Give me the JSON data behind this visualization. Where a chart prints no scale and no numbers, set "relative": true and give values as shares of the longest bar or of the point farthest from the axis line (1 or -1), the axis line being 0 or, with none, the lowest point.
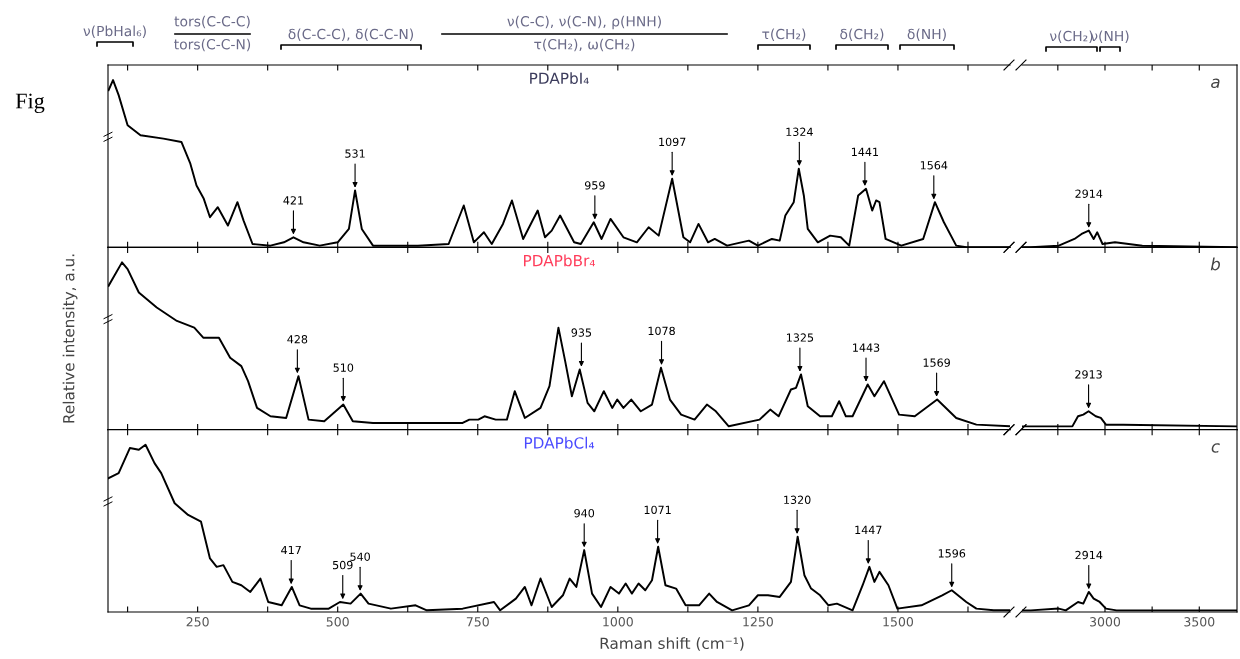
{
  "chart_data": [
    {
      "type": "line",
      "title": "PDAPbI₄",
      "relative": true,
      "tick_labels": false,
      "xlim": [
        90,
        1700
      ],
      "xticks": [
        {
          "value": 125,
          "label": null
        },
        {
          "value": 250,
          "label": null
        },
        {
          "value": 375,
          "label": null
        },
        {
          "value": 500,
          "label": null
        },
        {
          "value": 625,
          "label": null
        },
        {
          "value": 750,
          "label": null
        },
        {
          "value": 875,
          "label": null
        },
        {
          "value": 1000,
          "label": null
        },
        {
          "value": 1125,
          "label": null
        },
        {
          "value": 1250,
          "label": null
        },
        {
          "value": 1375,
          "label": null
        },
        {
          "value": 1500,
          "label": null
        },
        {
          "value": 1625,
          "label": null
        }
      ],
      "series": [
        {
          "color": "#000000",
          "x": [
            91,
            99,
            109,
            125,
            148,
            189,
            221,
            237,
            248,
            261,
            272,
            286,
            304,
            321,
            332,
            348,
            380,
            404,
            421,
            439,
            468,
            500,
            520,
            531,
            543,
            563,
            643,
            698,
            725,
            743,
            761,
            775,
            795,
            811,
            831,
            857,
            870,
            882,
            897,
            922,
            934,
            957,
            971,
            987,
            1010,
            1034,
            1055,
            1073,
            1097,
            1117,
            1129,
            1144,
            1161,
            1173,
            1195,
            1234,
            1250,
            1275,
            1289,
            1299,
            1314,
            1323,
            1332,
            1339,
            1357,
            1379,
            1398,
            1413,
            1429,
            1443,
            1454,
            1461,
            1467,
            1478,
            1506,
            1545,
            1566,
            1582,
            1604,
            1622,
            1700
          ],
          "values": [
            0.94,
            1.0,
            0.91,
            0.73,
            0.67,
            0.65,
            0.63,
            0.5,
            0.37,
            0.29,
            0.18,
            0.24,
            0.13,
            0.27,
            0.16,
            0.02,
            0.01,
            0.03,
            0.06,
            0.03,
            0.01,
            0.03,
            0.11,
            0.34,
            0.11,
            0.01,
            0.01,
            0.02,
            0.25,
            0.03,
            0.09,
            0.02,
            0.14,
            0.28,
            0.05,
            0.22,
            0.06,
            0.1,
            0.19,
            0.03,
            0.02,
            0.15,
            0.05,
            0.17,
            0.06,
            0.03,
            0.12,
            0.07,
            0.41,
            0.06,
            0.03,
            0.14,
            0.03,
            0.05,
            0.01,
            0.04,
            0.01,
            0.05,
            0.04,
            0.19,
            0.27,
            0.47,
            0.31,
            0.11,
            0.03,
            0.07,
            0.06,
            0.01,
            0.31,
            0.35,
            0.22,
            0.28,
            0.27,
            0.05,
            0.01,
            0.05,
            0.27,
            0.15,
            0.01,
            0.0,
            0.0
          ]
        }
      ],
      "annotations": [
        "Fig",
        "ν(PbHal₆)",
        "tors(C-C-C)\ntors(C-C-N)",
        "δ(C-C-C), δ(C-C-N)",
        "ν(C-C), ν(C-N), ρ(HNH)\nτ(CH₂), ω(CH₂)",
        "τ(CH₂)",
        "δ(CH₂)",
        "δ(NH)",
        {
          "text": "421",
          "x": 421,
          "y": 0.06
        },
        {
          "text": "531",
          "x": 531,
          "y": 0.34
        },
        {
          "text": "959",
          "x": 959,
          "y": 0.15
        },
        {
          "text": "1097",
          "x": 1097,
          "y": 0.41
        },
        {
          "text": "1324",
          "x": 1324,
          "y": 0.47
        },
        {
          "text": "1441",
          "x": 1441,
          "y": 0.35
        },
        {
          "text": "1564",
          "x": 1564,
          "y": 0.27
        }
      ]
    },
    {
      "type": "line",
      "relative": true,
      "tick_labels": false,
      "xlim": [
        2560,
        3700
      ],
      "xticks": [
        {
          "value": 2750,
          "label": null
        },
        {
          "value": 3000,
          "label": null
        },
        {
          "value": 3250,
          "label": null
        },
        {
          "value": 3500,
          "label": null
        }
      ],
      "series": [
        {
          "color": "#000000",
          "x": [
            2560,
            2607,
            2755,
            2838,
            2876,
            2914,
            2940,
            2959,
            2987,
            3053,
            3198,
            3700
          ],
          "values": [
            0.0,
            0.0,
            0.1,
            0.5,
            0.8,
            1.0,
            0.5,
            0.9,
            0.2,
            0.3,
            0.1,
            0.0
          ]
        }
      ],
      "annotations": [
        "a",
        "ν(CH₂)",
        "ν(NH)",
        {
          "text": "2914",
          "x": 2914,
          "y": 1.0
        }
      ]
    },
    {
      "type": "line",
      "title": "PDAPbBr₄",
      "relative": true,
      "tick_labels": false,
      "ylabel": "Relative intensity, a.u.",
      "xlim": [
        90,
        1700
      ],
      "xticks": [
        {
          "value": 125,
          "label": null
        },
        {
          "value": 250,
          "label": null
        },
        {
          "value": 375,
          "label": null
        },
        {
          "value": 500,
          "label": null
        },
        {
          "value": 625,
          "label": null
        },
        {
          "value": 750,
          "label": null
        },
        {
          "value": 875,
          "label": null
        },
        {
          "value": 1000,
          "label": null
        },
        {
          "value": 1125,
          "label": null
        },
        {
          "value": 1250,
          "label": null
        },
        {
          "value": 1375,
          "label": null
        },
        {
          "value": 1500,
          "label": null
        },
        {
          "value": 1625,
          "label": null
        }
      ],
      "series": [
        {
          "color": "#000000",
          "x": [
            91,
            115,
            125,
            145,
            177,
            213,
            244,
            260,
            288,
            308,
            328,
            340,
            356,
            380,
            408,
            430,
            448,
            476,
            510,
            527,
            563,
            723,
            735,
            751,
            762,
            782,
            802,
            816,
            834,
            862,
            878,
            894,
            906,
            918,
            932,
            946,
            958,
            975,
            990,
            999,
            1010,
            1024,
            1041,
            1061,
            1077,
            1093,
            1113,
            1137,
            1159,
            1175,
            1198,
            1253,
            1272,
            1287,
            1309,
            1318,
            1327,
            1339,
            1361,
            1382,
            1395,
            1407,
            1419,
            1446,
            1458,
            1475,
            1502,
            1530,
            1570,
            1604,
            1640,
            1700
          ],
          "values": [
            0.86,
            1.0,
            0.96,
            0.82,
            0.73,
            0.65,
            0.61,
            0.55,
            0.55,
            0.43,
            0.38,
            0.29,
            0.13,
            0.08,
            0.07,
            0.32,
            0.06,
            0.05,
            0.15,
            0.05,
            0.04,
            0.04,
            0.06,
            0.06,
            0.08,
            0.06,
            0.06,
            0.23,
            0.07,
            0.13,
            0.26,
            0.61,
            0.41,
            0.2,
            0.36,
            0.16,
            0.11,
            0.23,
            0.13,
            0.18,
            0.13,
            0.18,
            0.11,
            0.15,
            0.37,
            0.18,
            0.09,
            0.06,
            0.15,
            0.11,
            0.02,
            0.06,
            0.12,
            0.08,
            0.24,
            0.25,
            0.33,
            0.14,
            0.08,
            0.08,
            0.17,
            0.08,
            0.08,
            0.27,
            0.2,
            0.29,
            0.09,
            0.08,
            0.18,
            0.07,
            0.03,
            0.02
          ]
        }
      ],
      "annotations": [
        {
          "text": "428",
          "x": 428,
          "y": 0.32
        },
        {
          "text": "510",
          "x": 510,
          "y": 0.15
        },
        {
          "text": "935",
          "x": 935,
          "y": 0.36
        },
        {
          "text": "1078",
          "x": 1078,
          "y": 0.37
        },
        {
          "text": "1325",
          "x": 1325,
          "y": 0.33
        },
        {
          "text": "1443",
          "x": 1443,
          "y": 0.27
        },
        {
          "text": "1569",
          "x": 1569,
          "y": 0.18
        }
      ]
    },
    {
      "type": "line",
      "relative": true,
      "tick_labels": false,
      "xlim": [
        2560,
        3700
      ],
      "xticks": [
        {
          "value": 2750,
          "label": null
        },
        {
          "value": 3000,
          "label": null
        },
        {
          "value": 3250,
          "label": null
        },
        {
          "value": 3500,
          "label": null
        }
      ],
      "series": [
        {
          "color": "#000000",
          "x": [
            2560,
            2607,
            2827,
            2857,
            2885,
            2913,
            2951,
            2978,
            3005,
            3096,
            3700
          ],
          "values": [
            0.18,
            0.18,
            0.18,
            0.73,
            0.82,
            1.0,
            0.73,
            0.64,
            0.27,
            0.27,
            0.18
          ]
        }
      ],
      "annotations": [
        "b",
        {
          "text": "2913",
          "x": 2913,
          "y": 1.0
        }
      ]
    },
    {
      "type": "line",
      "title": "PDAPbCl₄",
      "relative": true,
      "tick_labels": "x",
      "xlabel": "Raman shift (cm⁻¹)",
      "xlim": [
        90,
        1700
      ],
      "xticks": [
        {
          "value": 125,
          "label": null
        },
        250,
        {
          "value": 375,
          "label": null
        },
        500,
        {
          "value": 625,
          "label": null
        },
        750,
        {
          "value": 875,
          "label": null
        },
        1000,
        {
          "value": 1125,
          "label": null
        },
        1250,
        {
          "value": 1375,
          "label": null
        },
        1500,
        {
          "value": 1625,
          "label": null
        }
      ],
      "series": [
        {
          "color": "#000000",
          "x": [
            91,
            109,
            129,
            145,
            157,
            173,
            185,
            209,
            233,
            256,
            272,
            284,
            296,
            312,
            328,
            344,
            362,
            376,
            400,
            418,
            432,
            452,
            484,
            504,
            523,
            541,
            555,
            595,
            639,
            659,
            723,
            779,
            790,
            818,
            834,
            846,
            862,
            882,
            902,
            914,
            926,
            940,
            954,
            970,
            987,
            1002,
            1014,
            1025,
            1037,
            1049,
            1061,
            1072,
            1085,
            1104,
            1121,
            1145,
            1163,
            1177,
            1204,
            1234,
            1250,
            1268,
            1289,
            1309,
            1321,
            1333,
            1345,
            1361,
            1376,
            1391,
            1419,
            1437,
            1449,
            1458,
            1467,
            1483,
            1499,
            1542,
            1579,
            1596,
            1622,
            1640,
            1671,
            1700
          ],
          "values": [
            0.8,
            0.83,
            0.98,
            0.97,
            1.0,
            0.89,
            0.83,
            0.65,
            0.58,
            0.54,
            0.32,
            0.27,
            0.28,
            0.18,
            0.16,
            0.12,
            0.2,
            0.06,
            0.04,
            0.15,
            0.04,
            0.02,
            0.02,
            0.06,
            0.05,
            0.11,
            0.05,
            0.02,
            0.04,
            0.01,
            0.02,
            0.06,
            0.01,
            0.08,
            0.15,
            0.04,
            0.2,
            0.03,
            0.1,
            0.2,
            0.15,
            0.37,
            0.11,
            0.03,
            0.15,
            0.11,
            0.17,
            0.11,
            0.17,
            0.13,
            0.19,
            0.39,
            0.16,
            0.14,
            0.04,
            0.04,
            0.11,
            0.06,
            0.01,
            0.04,
            0.1,
            0.1,
            0.09,
            0.18,
            0.45,
            0.22,
            0.14,
            0.1,
            0.04,
            0.05,
            0.01,
            0.16,
            0.27,
            0.18,
            0.24,
            0.16,
            0.02,
            0.04,
            0.1,
            0.13,
            0.06,
            0.02,
            0.01,
            0.01
          ]
        }
      ],
      "annotations": [
        {
          "text": "417",
          "x": 417,
          "y": 0.15
        },
        {
          "text": "509",
          "x": 509,
          "y": 0.06
        },
        {
          "text": "540",
          "x": 540,
          "y": 0.11
        },
        {
          "text": "940",
          "x": 940,
          "y": 0.37
        },
        {
          "text": "1071",
          "x": 1071,
          "y": 0.39
        },
        {
          "text": "1320",
          "x": 1320,
          "y": 0.45
        },
        {
          "text": "1447",
          "x": 1447,
          "y": 0.27
        },
        {
          "text": "1596",
          "x": 1596,
          "y": 0.13
        }
      ]
    },
    {
      "type": "line",
      "relative": true,
      "tick_labels": "x",
      "xlim": [
        2560,
        3700
      ],
      "xticks": [
        {
          "value": 2750,
          "label": null
        },
        3000,
        {
          "value": 3250,
          "label": null
        },
        3500
      ],
      "series": [
        {
          "color": "#000000",
          "x": [
            2560,
            2607,
            2755,
            2792,
            2857,
            2885,
            2914,
            2940,
            2972,
            3005,
            3061,
            3700
          ],
          "values": [
            0.08,
            0.08,
            0.17,
            0.08,
            0.5,
            0.42,
            1.0,
            0.67,
            0.5,
            0.17,
            0.08,
            0.08
          ]
        }
      ],
      "annotations": [
        "c",
        {
          "text": "2914",
          "x": 2914,
          "y": 1.0
        }
      ]
    }
  ]
}
